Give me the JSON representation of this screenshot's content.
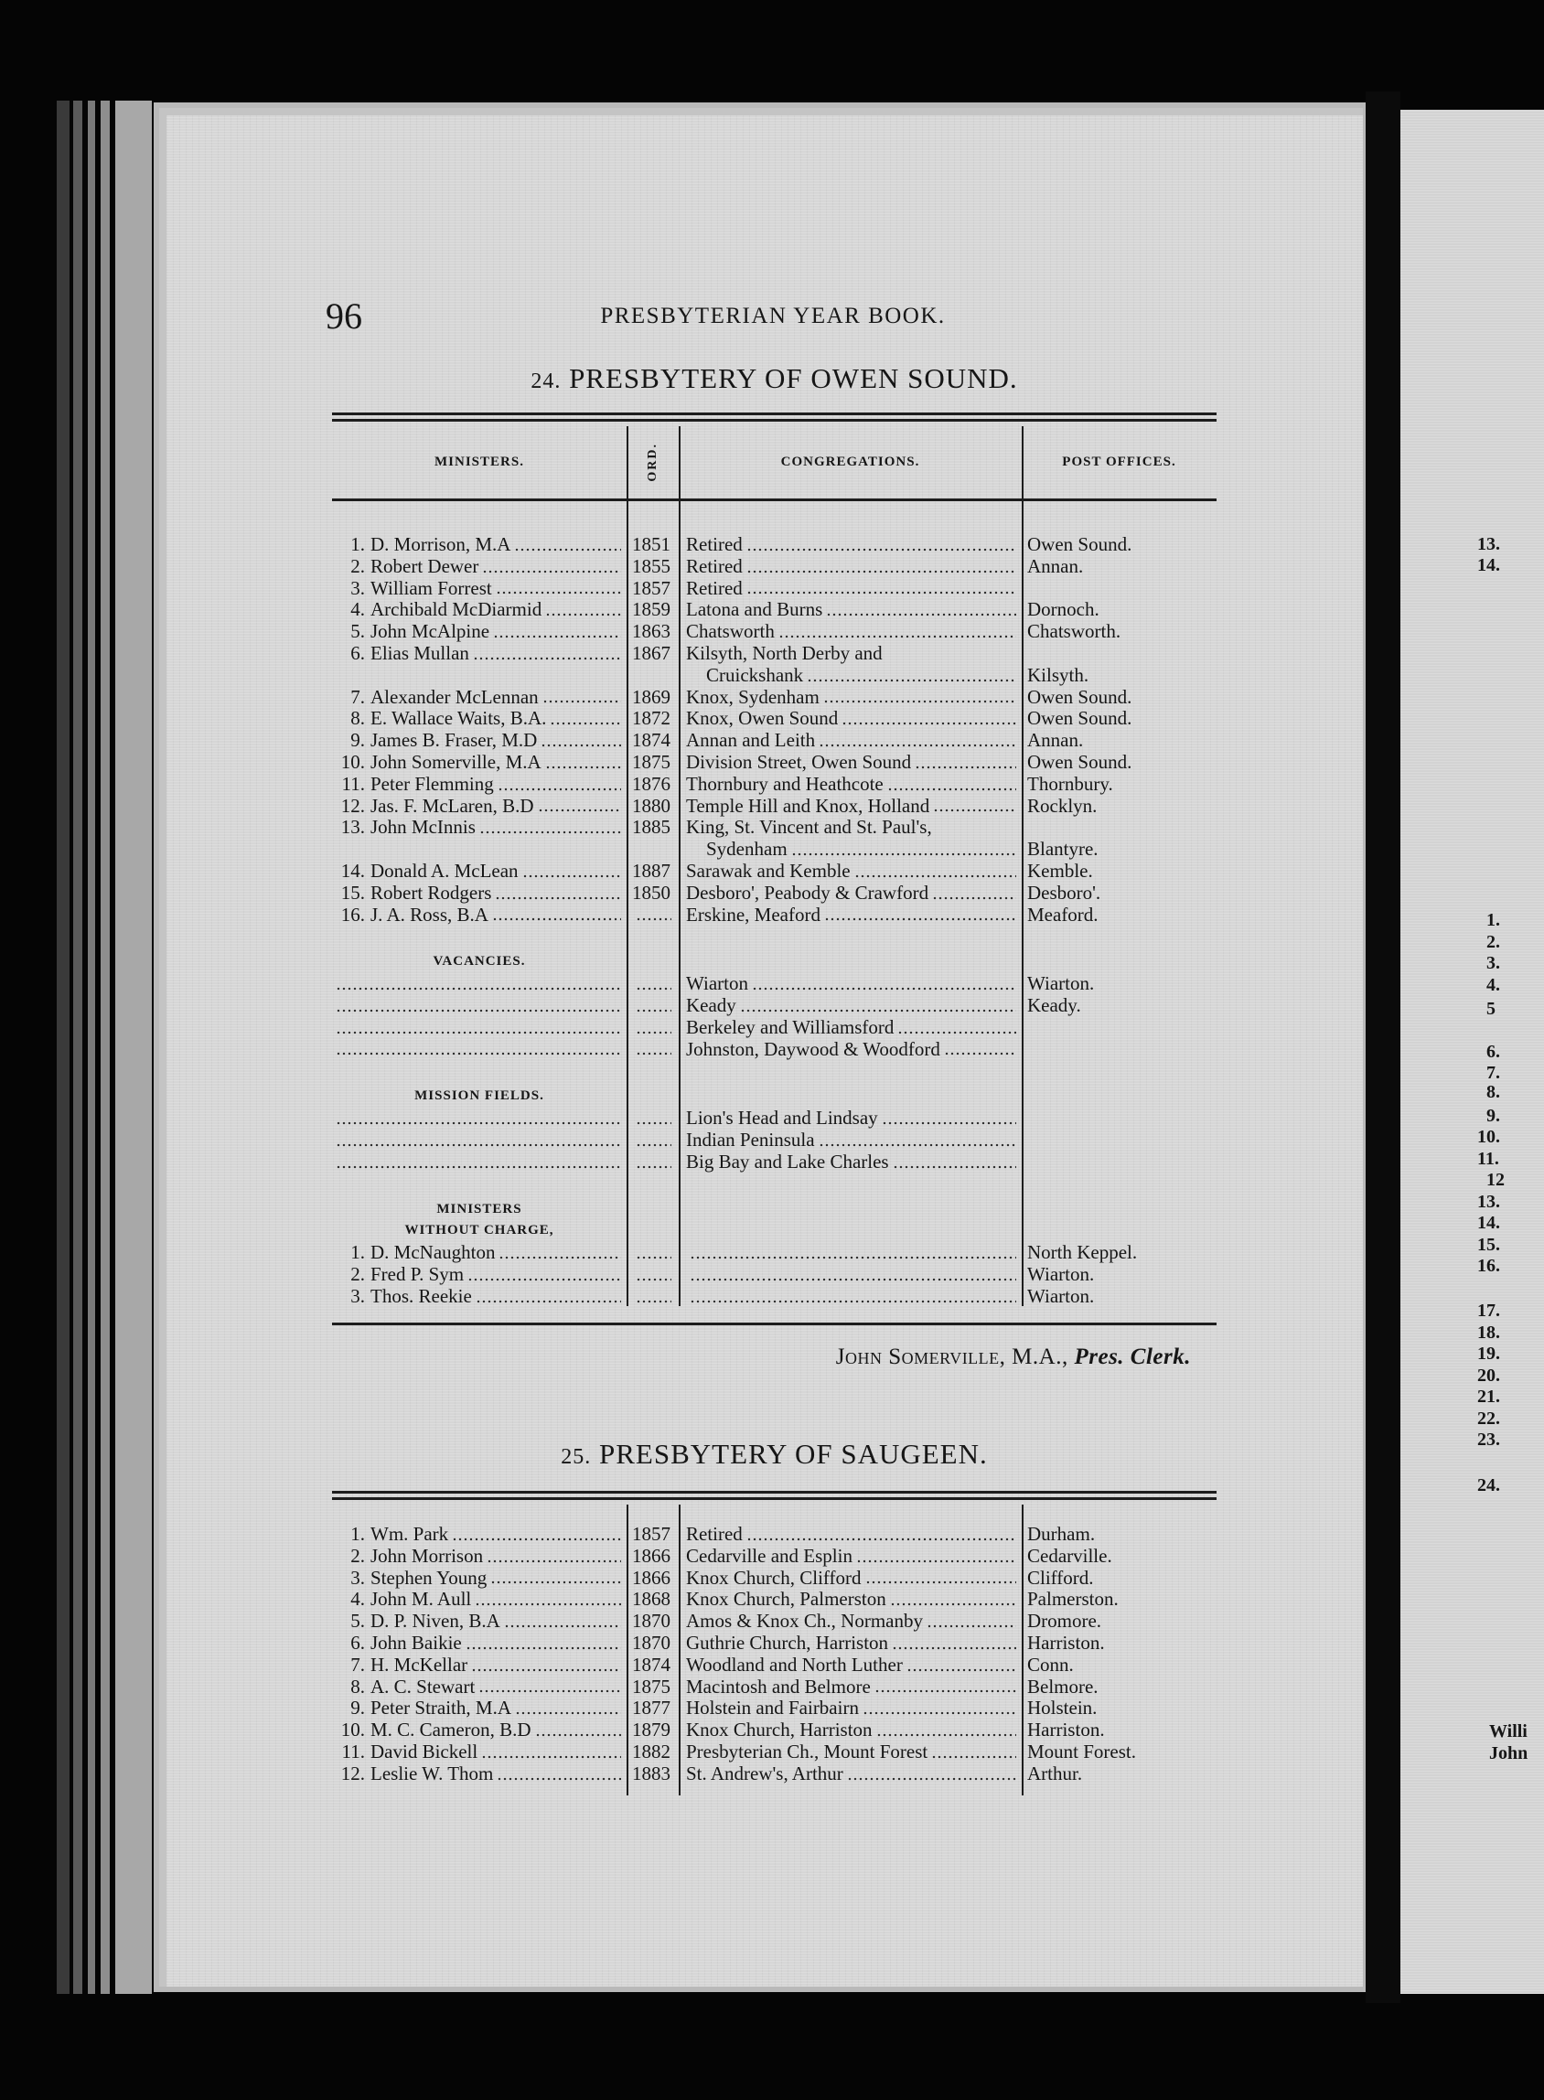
{
  "page_number": "96",
  "running_head": "PRESBYTERIAN YEAR BOOK.",
  "owen_sound": {
    "number": "24.",
    "title": "PRESBYTERY OF OWEN SOUND.",
    "columns": [
      "MINISTERS.",
      "ORD.",
      "CONGREGATIONS.",
      "POST OFFICES."
    ],
    "ministers": [
      {
        "num": "1.",
        "name": "D. Morrison, M.A",
        "ord": "1851",
        "congregation": [
          "Retired"
        ],
        "post": "Owen Sound."
      },
      {
        "num": "2.",
        "name": "Robert Dewer",
        "ord": "1855",
        "congregation": [
          "Retired"
        ],
        "post": "Annan."
      },
      {
        "num": "3.",
        "name": "William Forrest",
        "ord": "1857",
        "congregation": [
          "Retired"
        ],
        "post": ""
      },
      {
        "num": "4.",
        "name": "Archibald McDiarmid",
        "ord": "1859",
        "congregation": [
          "Latona and Burns"
        ],
        "post": "Dornoch."
      },
      {
        "num": "5.",
        "name": "John McAlpine",
        "ord": "1863",
        "congregation": [
          "Chatsworth"
        ],
        "post": "Chatsworth."
      },
      {
        "num": "6.",
        "name": "Elias Mullan",
        "ord": "1867",
        "congregation": [
          "Kilsyth, North Derby and",
          "Cruickshank"
        ],
        "post": "Kilsyth."
      },
      {
        "num": "7.",
        "name": "Alexander McLennan",
        "ord": "1869",
        "congregation": [
          "Knox, Sydenham"
        ],
        "post": "Owen Sound."
      },
      {
        "num": "8.",
        "name": "E. Wallace Waits, B.A.",
        "ord": "1872",
        "congregation": [
          "Knox, Owen Sound"
        ],
        "post": "Owen Sound."
      },
      {
        "num": "9.",
        "name": "James B. Fraser, M.D",
        "ord": "1874",
        "congregation": [
          "Annan and Leith"
        ],
        "post": "Annan."
      },
      {
        "num": "10.",
        "name": "John Somerville, M.A",
        "ord": "1875",
        "congregation": [
          "Division Street, Owen Sound"
        ],
        "post": "Owen Sound."
      },
      {
        "num": "11.",
        "name": "Peter Flemming",
        "ord": "1876",
        "congregation": [
          "Thornbury and Heathcote"
        ],
        "post": "Thornbury."
      },
      {
        "num": "12.",
        "name": "Jas. F. McLaren, B.D",
        "ord": "1880",
        "congregation": [
          "Temple Hill and Knox, Holland"
        ],
        "post": "Rocklyn."
      },
      {
        "num": "13.",
        "name": "John McInnis",
        "ord": "1885",
        "congregation": [
          "King, St. Vincent and St. Paul's,",
          "Sydenham"
        ],
        "post": "Blantyre."
      },
      {
        "num": "14.",
        "name": "Donald A. McLean",
        "ord": "1887",
        "congregation": [
          "Sarawak and Kemble"
        ],
        "post": "Kemble."
      },
      {
        "num": "15.",
        "name": "Robert Rodgers",
        "ord": "1850",
        "congregation": [
          "Desboro', Peabody & Crawford"
        ],
        "post": "Desboro'."
      },
      {
        "num": "16.",
        "name": "J. A. Ross, B.A",
        "ord": "",
        "congregation": [
          "Erskine, Meaford"
        ],
        "post": "Meaford."
      }
    ],
    "vacancies_label": "VACANCIES.",
    "vacancies": [
      {
        "congregation": "Wiarton",
        "post": "Wiarton."
      },
      {
        "congregation": "Keady",
        "post": "Keady."
      },
      {
        "congregation": "Berkeley and Williamsford",
        "post": ""
      },
      {
        "congregation": "Johnston, Daywood & Woodford",
        "post": ""
      }
    ],
    "mission_label": "MISSION FIELDS.",
    "mission_fields": [
      {
        "congregation": "Lion's Head and Lindsay",
        "post": ""
      },
      {
        "congregation": "Indian Peninsula",
        "post": ""
      },
      {
        "congregation": "Big Bay and Lake Charles",
        "post": ""
      }
    ],
    "without_charge_label": [
      "MINISTERS",
      "WITHOUT CHARGE,"
    ],
    "without_charge": [
      {
        "num": "1.",
        "name": "D. McNaughton",
        "post": "North Keppel."
      },
      {
        "num": "2.",
        "name": "Fred P. Sym",
        "post": "Wiarton."
      },
      {
        "num": "3.",
        "name": "Thos. Reekie",
        "post": "Wiarton."
      }
    ],
    "clerk": {
      "name": "John Somerville",
      "degree": ", M.A.,",
      "title": "Pres. Clerk."
    }
  },
  "saugeen": {
    "number": "25.",
    "title": "PRESBYTERY OF SAUGEEN.",
    "ministers": [
      {
        "num": "1.",
        "name": "Wm. Park",
        "ord": "1857",
        "congregation": [
          "Retired"
        ],
        "post": "Durham."
      },
      {
        "num": "2.",
        "name": "John Morrison",
        "ord": "1866",
        "congregation": [
          "Cedarville and Esplin"
        ],
        "post": "Cedarville."
      },
      {
        "num": "3.",
        "name": "Stephen Young",
        "ord": "1866",
        "congregation": [
          "Knox Church, Clifford"
        ],
        "post": "Clifford."
      },
      {
        "num": "4.",
        "name": "John M. Aull",
        "ord": "1868",
        "congregation": [
          "Knox Church, Palmerston"
        ],
        "post": "Palmerston."
      },
      {
        "num": "5.",
        "name": "D. P. Niven, B.A",
        "ord": "1870",
        "congregation": [
          "Amos & Knox Ch., Normanby"
        ],
        "post": "Dromore."
      },
      {
        "num": "6.",
        "name": "John Baikie",
        "ord": "1870",
        "congregation": [
          "Guthrie Church, Harriston"
        ],
        "post": "Harriston."
      },
      {
        "num": "7.",
        "name": "H. McKellar",
        "ord": "1874",
        "congregation": [
          "Woodland and North Luther"
        ],
        "post": "Conn."
      },
      {
        "num": "8.",
        "name": "A. C. Stewart",
        "ord": "1875",
        "congregation": [
          "Macintosh and Belmore"
        ],
        "post": "Belmore."
      },
      {
        "num": "9.",
        "name": "Peter Straith, M.A",
        "ord": "1877",
        "congregation": [
          "Holstein and Fairbairn"
        ],
        "post": "Holstein."
      },
      {
        "num": "10.",
        "name": "M. C. Cameron, B.D",
        "ord": "1879",
        "congregation": [
          "Knox Church, Harriston"
        ],
        "post": "Harriston."
      },
      {
        "num": "11.",
        "name": "David Bickell",
        "ord": "1882",
        "congregation": [
          "Presbyterian Ch., Mount Forest"
        ],
        "post": "Mount Forest."
      },
      {
        "num": "12.",
        "name": "Leslie W. Thom",
        "ord": "1883",
        "congregation": [
          "St. Andrew's, Arthur"
        ],
        "post": "Arthur."
      }
    ]
  },
  "facing_page_fragments": [
    "13.",
    "14.",
    "1.",
    "2.",
    "3.",
    "4.",
    "5",
    "6.",
    "7.",
    "8.",
    "9.",
    "10.",
    "11.",
    "12",
    "13.",
    "14.",
    "15.",
    "16.",
    "17.",
    "18.",
    "19.",
    "20.",
    "21.",
    "22.",
    "23.",
    "24.",
    "Willi",
    "John"
  ]
}
